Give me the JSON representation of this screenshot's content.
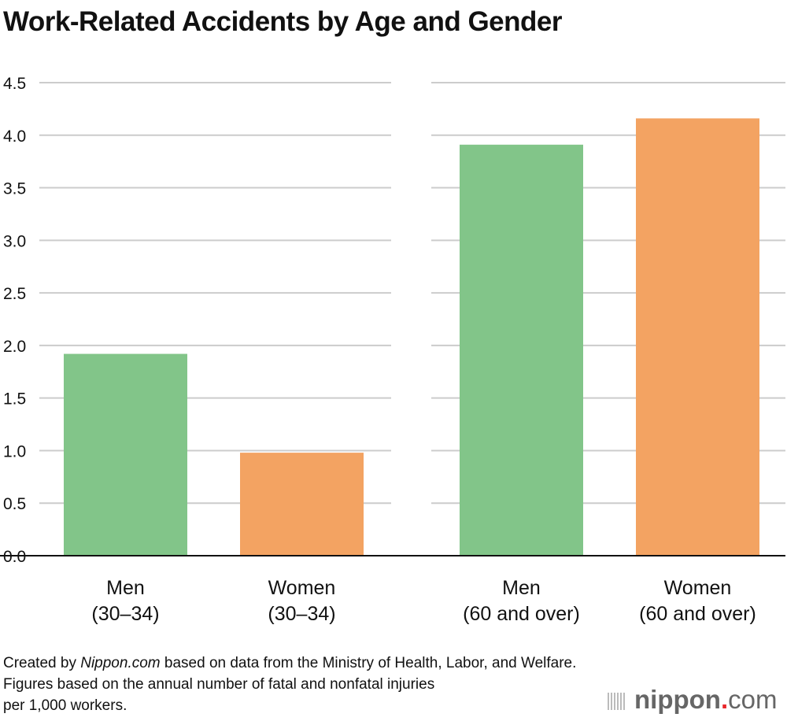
{
  "chart_data": {
    "type": "bar",
    "title": "Work-Related Accidents by Age and Gender",
    "categories": [
      [
        "Men",
        "(30–34)"
      ],
      [
        "Women",
        "(30–34)"
      ],
      [
        "Men",
        "(60 and over)"
      ],
      [
        "Women",
        "(60 and over)"
      ]
    ],
    "values": [
      1.92,
      0.98,
      3.91,
      4.16
    ],
    "colors": [
      "#82c589",
      "#f3a362",
      "#82c589",
      "#f3a362"
    ],
    "ylim": [
      0,
      4.5
    ],
    "yticks": [
      "0.0",
      "0.5",
      "1.0",
      "1.5",
      "2.0",
      "2.5",
      "3.0",
      "3.5",
      "4.0",
      "4.5"
    ],
    "grid": true,
    "xlabel": "",
    "ylabel": ""
  },
  "notes": {
    "line1_pre": "Created by ",
    "line1_em": "Nippon.com",
    "line1_post": " based on data from the Ministry of Health, Labor, and Welfare.",
    "line2": "Figures based on the annual number of fatal and nonfatal injuries",
    "line3": "per 1,000 workers."
  },
  "logo": {
    "name": "nippon",
    "dot": ".",
    "com": "com"
  }
}
